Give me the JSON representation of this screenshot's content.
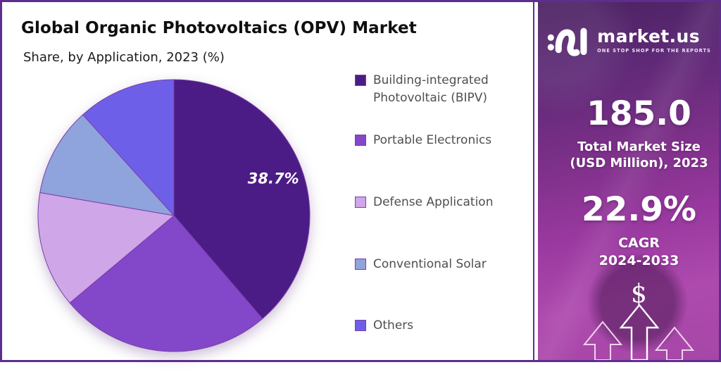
{
  "header": {
    "title": "Global Organic Photovoltaics (OPV) Market",
    "subtitle": "Share, by Application, 2023 (%)"
  },
  "chart_data": {
    "type": "pie",
    "title": "Global Organic Photovoltaics (OPV) Market",
    "subtitle": "Share, by Application, 2023 (%)",
    "unit": "%",
    "start_angle_deg": 0,
    "direction": "clockwise",
    "legend_position": "right",
    "slices": [
      {
        "label": "Building-integrated Photovoltaic (BIPV)",
        "value": 38.7,
        "color": "#4B1C85",
        "data_label": "38.7%"
      },
      {
        "label": "Portable Electronics",
        "value": 25.2,
        "color": "#8347C9",
        "data_label": ""
      },
      {
        "label": "Defense Application",
        "value": 13.8,
        "color": "#CFA6E8",
        "data_label": ""
      },
      {
        "label": "Conventional Solar",
        "value": 10.6,
        "color": "#8FA3DC",
        "data_label": ""
      },
      {
        "label": "Others",
        "value": 11.7,
        "color": "#6E5FE8",
        "data_label": ""
      }
    ]
  },
  "sidebar": {
    "logo": {
      "brand": "market.us",
      "tagline": "ONE STOP SHOP FOR THE REPORTS",
      "mark": "market-us-squiggle-icon"
    },
    "stats": [
      {
        "value": "185.0",
        "label_line1": "Total Market Size",
        "label_line2": "(USD Million), 2023"
      },
      {
        "value": "22.9%",
        "label_line1": "CAGR",
        "label_line2": "2024-2033"
      }
    ],
    "dollar_symbol": "$",
    "arrow_icons": [
      "up-arrow-icon",
      "up-arrow-icon",
      "up-arrow-icon"
    ]
  },
  "colors": {
    "frame_border": "#5E2D8E",
    "slice_stroke": "#7B3FA6",
    "legend_text": "#4f4f4f",
    "title_text": "#0f0f0f",
    "panel_gradient": [
      "#4A2160",
      "#7D3089",
      "#9A39A0",
      "#AE4AAE"
    ],
    "panel_text": "#ffffff"
  }
}
